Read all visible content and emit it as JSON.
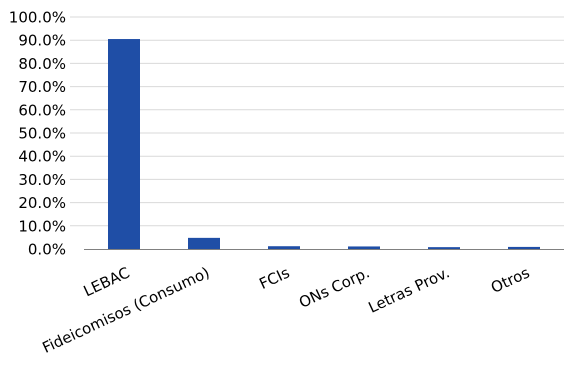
{
  "chart_data": {
    "type": "bar",
    "title": "",
    "xlabel": "",
    "ylabel": "",
    "categories": [
      "LEBAC",
      "Fideicomisos (Consumo)",
      "FCIs",
      "ONs Corp.",
      "Letras Prov.",
      "Otros"
    ],
    "values": [
      90.5,
      4.8,
      1.2,
      1.1,
      0.8,
      0.9
    ],
    "ylim": [
      0,
      100
    ],
    "yticks": [
      "0.0%",
      "10.0%",
      "20.0%",
      "30.0%",
      "40.0%",
      "50.0%",
      "60.0%",
      "70.0%",
      "80.0%",
      "90.0%",
      "100.0%"
    ],
    "grid": true,
    "legend": "none",
    "bar_color": "#1f4ea6"
  }
}
